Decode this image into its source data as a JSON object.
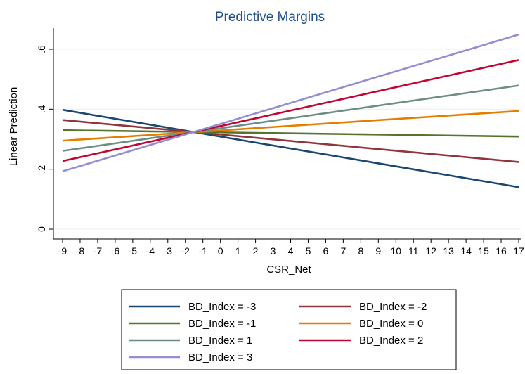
{
  "chart_data": {
    "type": "line",
    "title": "Predictive Margins",
    "xlabel": "CSR_Net",
    "ylabel": "Linear Prediction",
    "x": [
      -9,
      -8,
      -7,
      -6,
      -5,
      -4,
      -3,
      -2,
      -1,
      0,
      1,
      2,
      3,
      4,
      5,
      6,
      7,
      8,
      9,
      10,
      11,
      12,
      13,
      14,
      15,
      16,
      17
    ],
    "x_tick_labels": [
      "-9",
      "-8",
      "-7",
      "-6",
      "-5",
      "-4",
      "-3",
      "-2",
      "-1",
      "0",
      "1",
      "2",
      "3",
      "4",
      "5",
      "6",
      "7",
      "8",
      "9",
      "10",
      "11",
      "12",
      "13",
      "14",
      "15",
      "16",
      "17"
    ],
    "xlim": [
      -9,
      17
    ],
    "ylim": [
      0,
      0.6
    ],
    "y_ticks": [
      0,
      0.2,
      0.4,
      0.6
    ],
    "y_tick_labels": [
      "0",
      ".2",
      ".4",
      ".6"
    ],
    "grid": true,
    "legend_position": "bottom",
    "series": [
      {
        "name": "BD_Index = -3",
        "color": "#1a476f",
        "x": [
          -9,
          17
        ],
        "y": [
          0.398,
          0.14
        ]
      },
      {
        "name": "BD_Index = -2",
        "color": "#90353b",
        "x": [
          -9,
          17
        ],
        "y": [
          0.364,
          0.224
        ]
      },
      {
        "name": "BD_Index = -1",
        "color": "#55752f",
        "x": [
          -9,
          17
        ],
        "y": [
          0.33,
          0.309
        ]
      },
      {
        "name": "BD_Index = 0",
        "color": "#e37e00",
        "x": [
          -9,
          17
        ],
        "y": [
          0.295,
          0.394
        ]
      },
      {
        "name": "BD_Index = 1",
        "color": "#6e8e84",
        "x": [
          -9,
          17
        ],
        "y": [
          0.261,
          0.479
        ]
      },
      {
        "name": "BD_Index = 2",
        "color": "#c10534",
        "x": [
          -9,
          17
        ],
        "y": [
          0.227,
          0.564
        ]
      },
      {
        "name": "BD_Index = 3",
        "color": "#938dd2",
        "x": [
          -9,
          17
        ],
        "y": [
          0.193,
          0.649
        ]
      }
    ]
  }
}
